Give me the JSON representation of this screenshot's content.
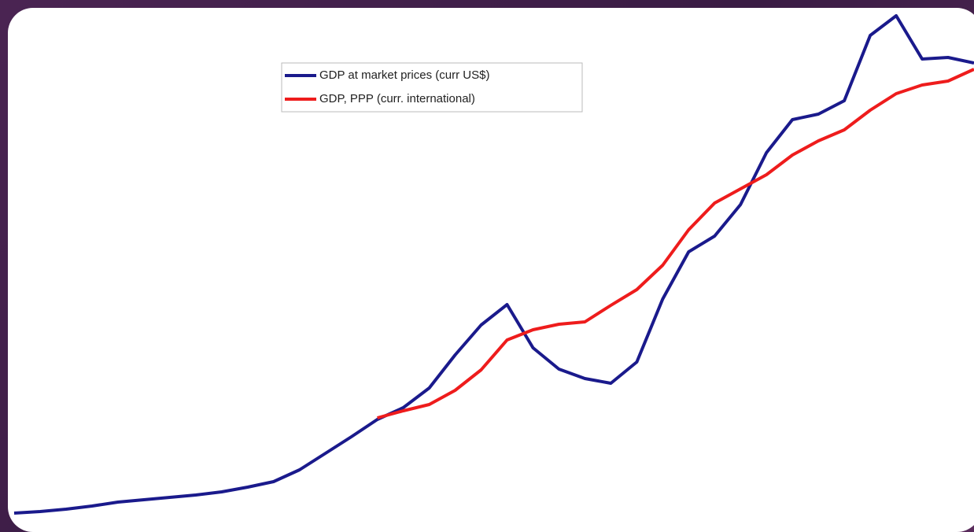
{
  "chart_data": {
    "type": "line",
    "series": [
      {
        "name": "GDP at market prices (curr US$)",
        "color": "#1a1a8c",
        "values": [
          8,
          10,
          13,
          17,
          22,
          25,
          28,
          31,
          35,
          41,
          48,
          63,
          84,
          105,
          127,
          142,
          167,
          209,
          247,
          273,
          218,
          191,
          179,
          173,
          200,
          280,
          340,
          360,
          400,
          466,
          508,
          515,
          532,
          615,
          640,
          585,
          587,
          580
        ]
      },
      {
        "name": "GDP, PPP (curr. international)",
        "color": "#ee1c1c",
        "values": [
          null,
          null,
          null,
          null,
          null,
          null,
          null,
          null,
          null,
          null,
          null,
          null,
          null,
          null,
          129,
          138,
          146,
          164,
          190,
          228,
          241,
          248,
          251,
          272,
          292,
          323,
          368,
          402,
          420,
          438,
          463,
          481,
          495,
          520,
          541,
          552,
          557,
          572
        ]
      }
    ],
    "legend": "upper center"
  }
}
